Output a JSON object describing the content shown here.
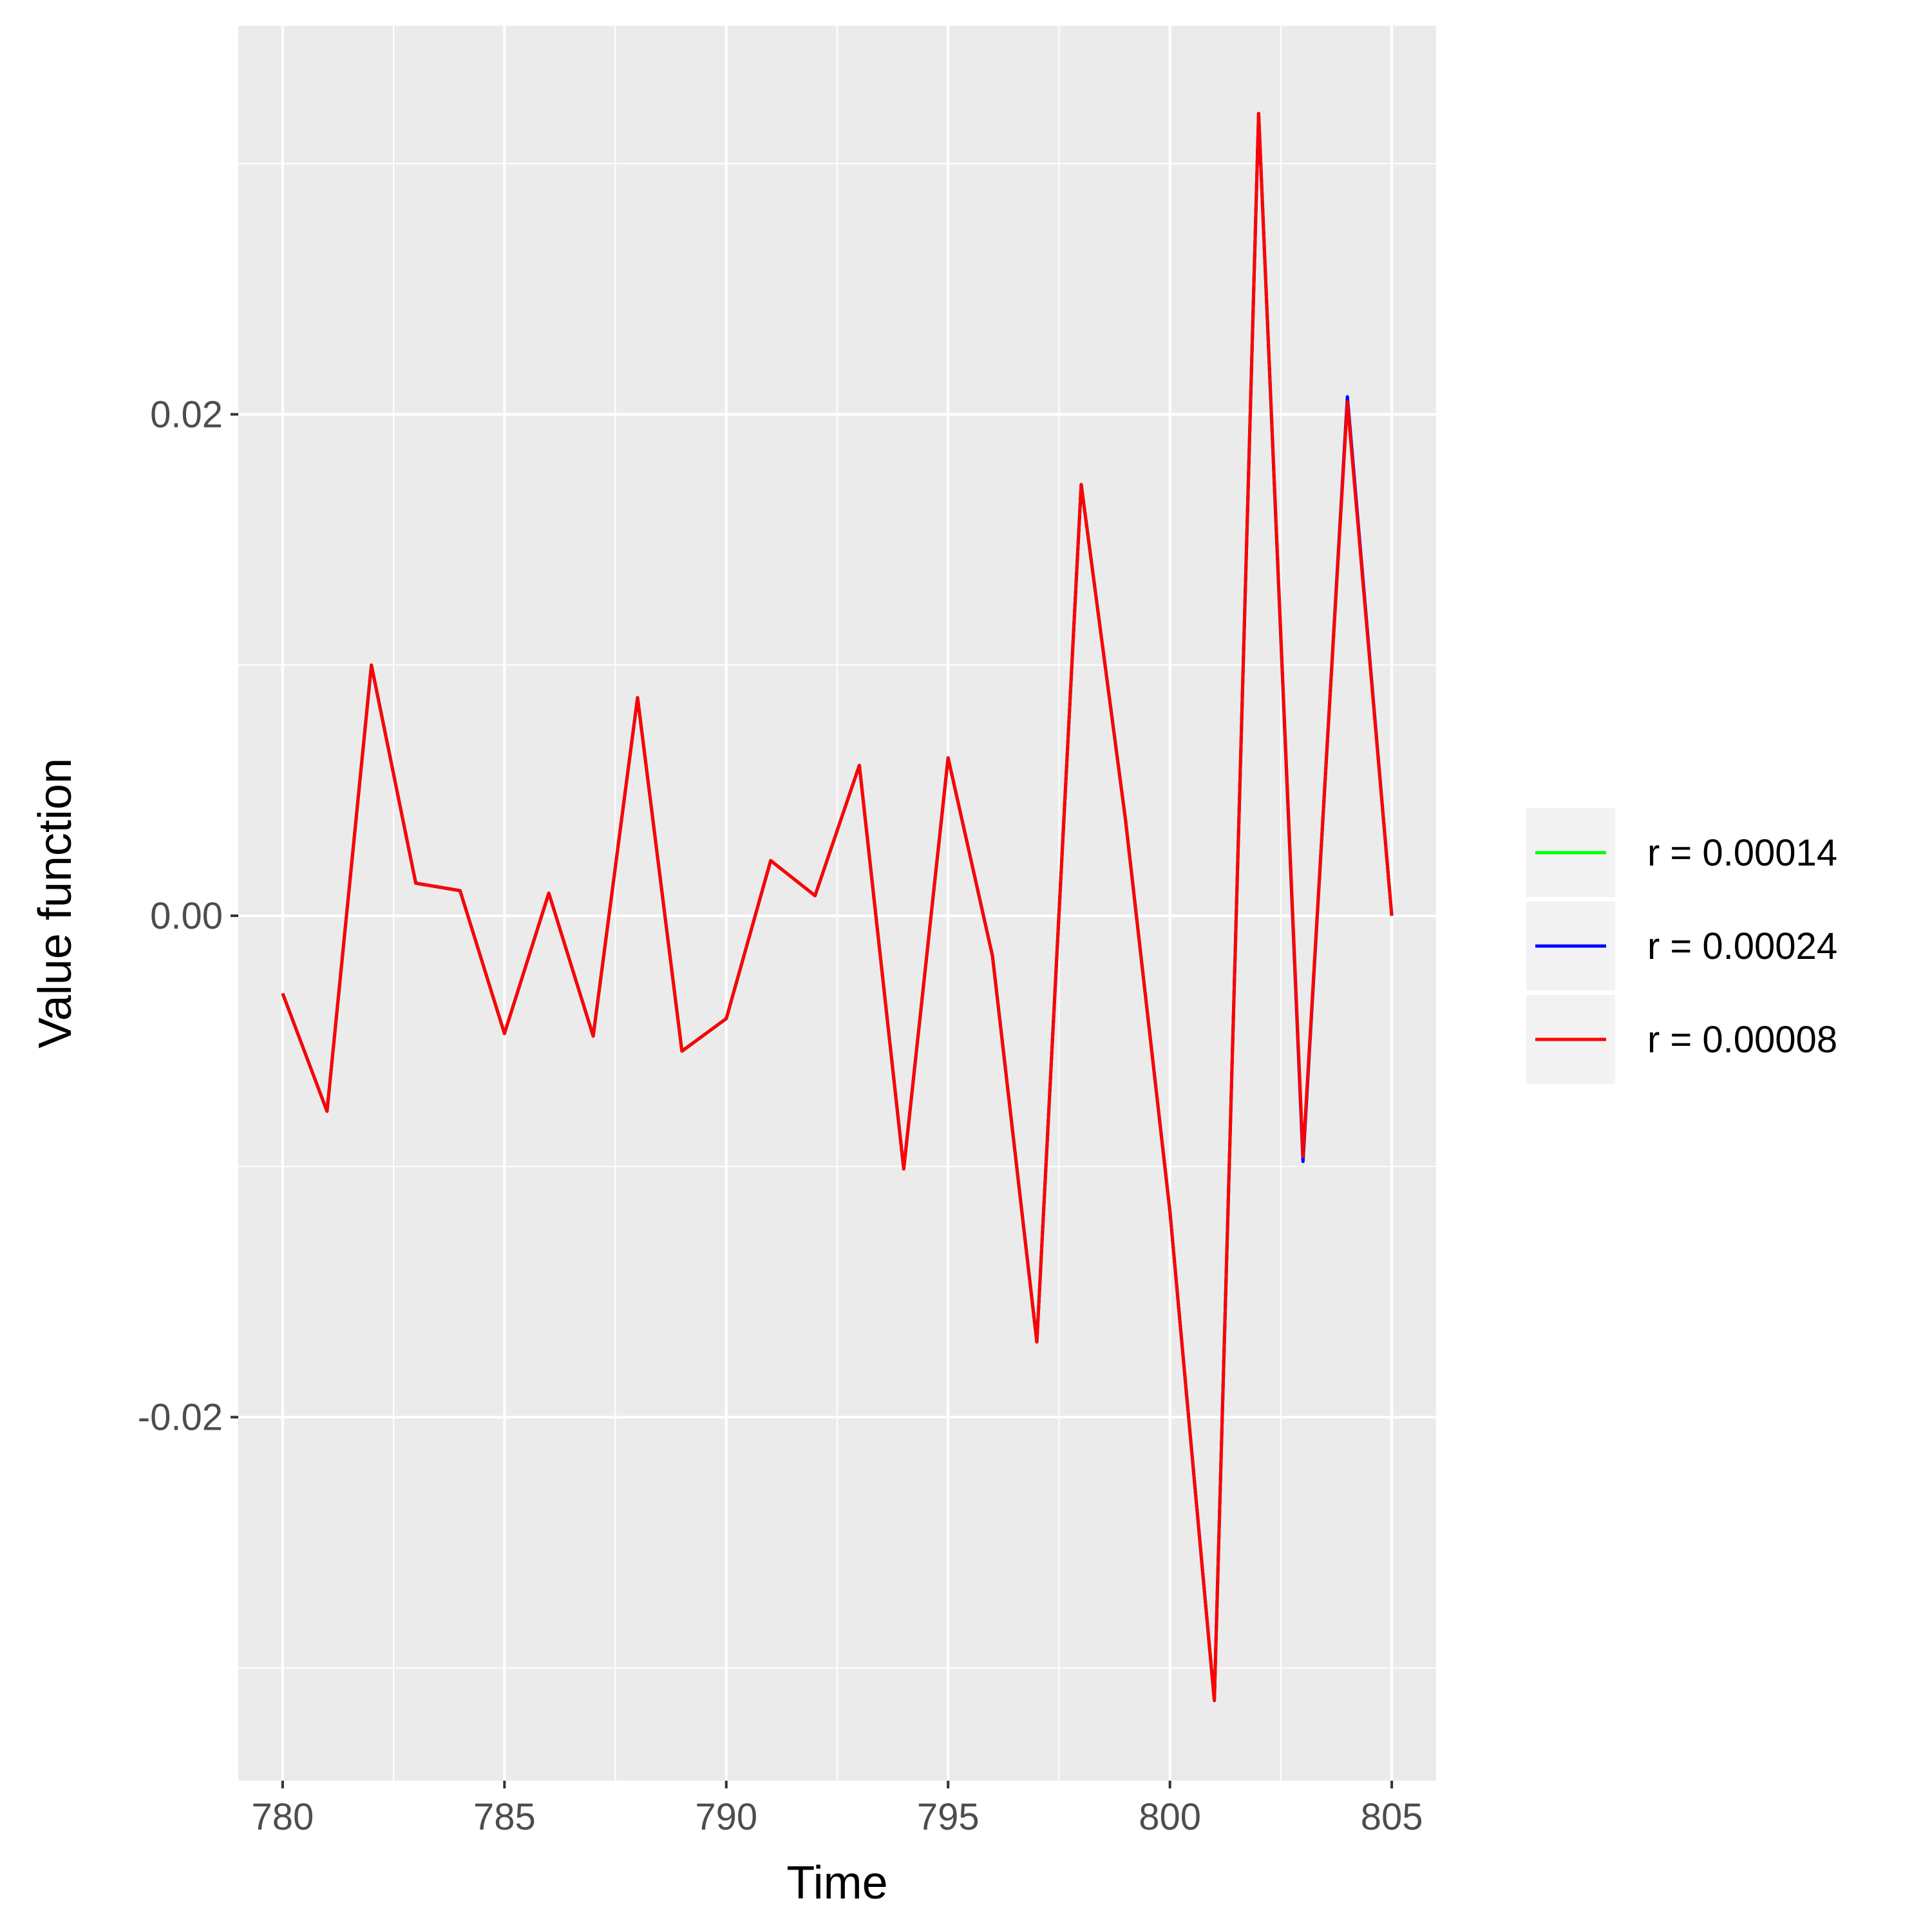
{
  "chart_data": {
    "type": "line",
    "xlabel": "Time",
    "ylabel": "Value function",
    "xlim": [
      779,
      806
    ],
    "ylim": [
      -0.0345,
      0.0355
    ],
    "x_ticks": [
      780,
      785,
      790,
      795,
      800,
      805
    ],
    "x_tick_labels": [
      "780",
      "785",
      "790",
      "795",
      "800",
      "805"
    ],
    "y_ticks": [
      -0.02,
      0.0,
      0.02
    ],
    "y_tick_labels": [
      "-0.02",
      "0.00",
      "0.02"
    ],
    "grid": true,
    "legend_position": "right",
    "x": [
      780,
      781,
      782,
      783,
      784,
      785,
      786,
      787,
      788,
      789,
      790,
      791,
      792,
      793,
      794,
      795,
      796,
      797,
      798,
      799,
      800,
      801,
      802,
      803,
      804,
      805
    ],
    "series": [
      {
        "name": "r = 0.00014",
        "color": "#00ff00",
        "values": [
          -0.0031,
          -0.0078,
          0.01,
          0.0013,
          0.001,
          -0.0047,
          0.0009,
          -0.0048,
          0.0087,
          -0.0054,
          -0.0041,
          0.0022,
          0.0008,
          0.006,
          -0.0101,
          0.0063,
          -0.0016,
          -0.017,
          0.0172,
          0.0038,
          -0.0118,
          -0.0313,
          0.032,
          -0.0098,
          0.0206,
          0.0
        ]
      },
      {
        "name": "r = 0.00024",
        "color": "#0000ff",
        "values": [
          -0.0031,
          -0.0078,
          0.01,
          0.0013,
          0.001,
          -0.0047,
          0.0009,
          -0.0048,
          0.0087,
          -0.0054,
          -0.0041,
          0.0022,
          0.0008,
          0.006,
          -0.0101,
          0.0063,
          -0.0016,
          -0.017,
          0.0172,
          0.0038,
          -0.0118,
          -0.0313,
          0.032,
          -0.0098,
          0.0207,
          0.0
        ]
      },
      {
        "name": "r = 0.00008",
        "color": "#ff0000",
        "values": [
          -0.0031,
          -0.0078,
          0.01,
          0.0013,
          0.001,
          -0.0047,
          0.0009,
          -0.0048,
          0.0087,
          -0.0054,
          -0.0041,
          0.0022,
          0.0008,
          0.006,
          -0.0101,
          0.0063,
          -0.0016,
          -0.017,
          0.0172,
          0.0038,
          -0.0118,
          -0.0313,
          0.032,
          -0.0096,
          0.0205,
          0.0
        ]
      }
    ]
  }
}
